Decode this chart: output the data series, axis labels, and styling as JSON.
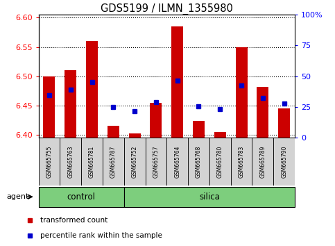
{
  "title": "GDS5199 / ILMN_1355980",
  "samples": [
    "GSM665755",
    "GSM665763",
    "GSM665781",
    "GSM665787",
    "GSM665752",
    "GSM665757",
    "GSM665764",
    "GSM665768",
    "GSM665780",
    "GSM665783",
    "GSM665789",
    "GSM665790"
  ],
  "red_values": [
    6.5,
    6.51,
    6.56,
    6.415,
    6.402,
    6.455,
    6.585,
    6.424,
    6.405,
    6.55,
    6.482,
    6.445
  ],
  "blue_values": [
    6.468,
    6.477,
    6.49,
    6.447,
    6.44,
    6.456,
    6.493,
    6.449,
    6.444,
    6.484,
    6.463,
    6.453
  ],
  "ymin": 6.395,
  "ymax": 6.605,
  "yticks": [
    6.4,
    6.45,
    6.5,
    6.55,
    6.6
  ],
  "right_yticks": [
    0,
    25,
    50,
    75,
    100
  ],
  "n_control": 4,
  "n_silica": 8,
  "control_label": "control",
  "silica_label": "silica",
  "agent_label": "agent",
  "legend_red": "transformed count",
  "legend_blue": "percentile rank within the sample",
  "bar_width": 0.55,
  "red_color": "#cc0000",
  "blue_color": "#0000cc",
  "green_bg": "#7dce7d",
  "sample_bg": "#d3d3d3",
  "title_fontsize": 10.5
}
